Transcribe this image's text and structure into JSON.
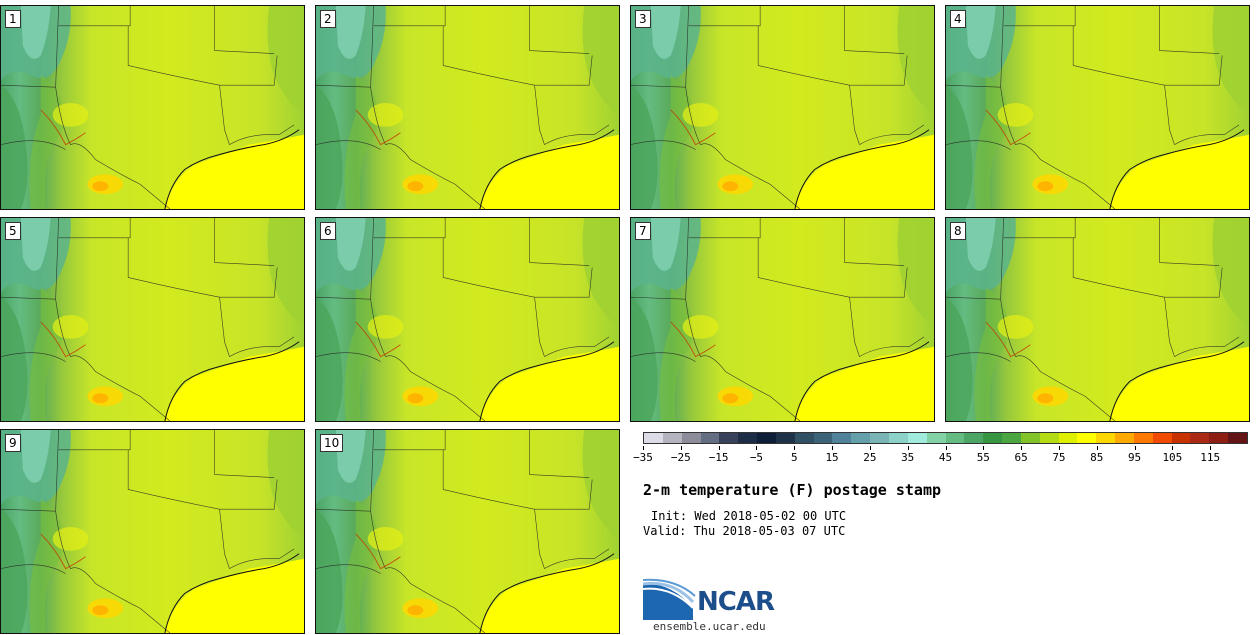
{
  "panels": [
    "1",
    "2",
    "3",
    "4",
    "5",
    "6",
    "7",
    "8",
    "9",
    "10"
  ],
  "colorbar": {
    "colors": [
      "#dcdce6",
      "#b4b4be",
      "#8c8c9a",
      "#646e82",
      "#37415a",
      "#1e2d46",
      "#0f1e37",
      "#1e3248",
      "#325064",
      "#3c6478",
      "#50829a",
      "#64a0aa",
      "#7ab4b4",
      "#8cd2c8",
      "#a0ebdc",
      "#82d2a6",
      "#64bc82",
      "#4ba564",
      "#379641",
      "#4ba541",
      "#82c328",
      "#b4dc14",
      "#dcf000",
      "#ffff00",
      "#ffd700",
      "#ffaa00",
      "#ff7800",
      "#f04b00",
      "#c83200",
      "#aa2814",
      "#8c1e14",
      "#641414"
    ],
    "ticks": [
      "−35",
      "−25",
      "−15",
      "−5",
      "5",
      "15",
      "25",
      "35",
      "45",
      "55",
      "65",
      "75",
      "85",
      "95",
      "105",
      "115"
    ]
  },
  "title": "2-m temperature (F) postage stamp",
  "init": "Init: Wed 2018-05-02 00 UTC",
  "valid": "Valid: Thu 2018-05-03 07 UTC",
  "logo_text": "NCAR",
  "site": "ensemble.ucar.edu"
}
